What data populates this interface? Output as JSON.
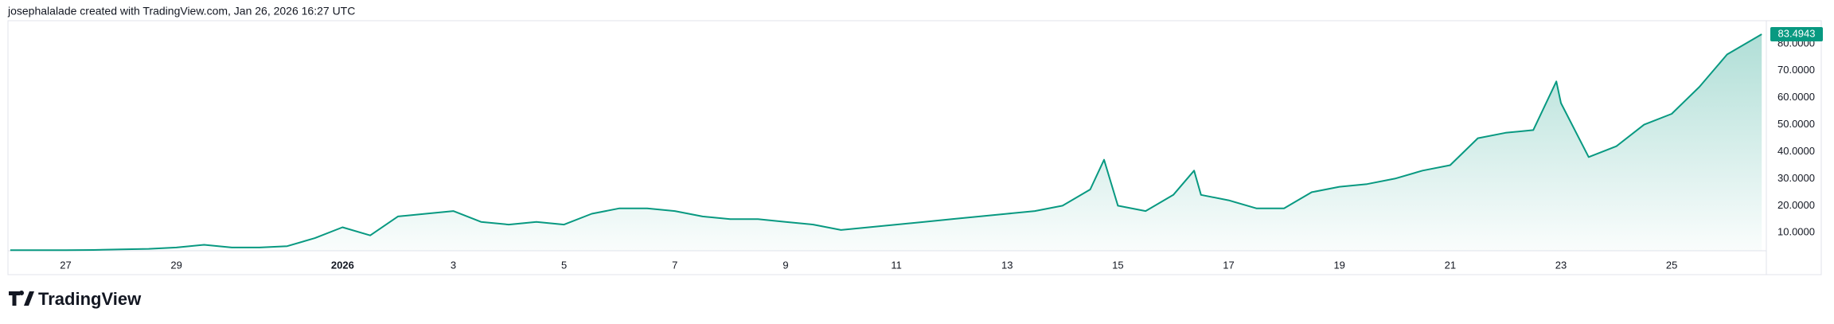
{
  "header": {
    "text": "josephalalade created with TradingView.com, Jan 26, 2026 16:27 UTC"
  },
  "footer": {
    "logo": "TradingView"
  },
  "chart_data": {
    "type": "area",
    "color": "#089981",
    "grid": false,
    "x": [
      "2025-12-26T00:00",
      "2025-12-26T12:00",
      "2025-12-27T00:00",
      "2025-12-27T12:00",
      "2025-12-28T00:00",
      "2025-12-28T12:00",
      "2025-12-29T00:00",
      "2025-12-29T12:00",
      "2025-12-30T00:00",
      "2025-12-30T12:00",
      "2025-12-31T00:00",
      "2025-12-31T12:00",
      "2026-01-01T00:00",
      "2026-01-01T12:00",
      "2026-01-02T00:00",
      "2026-01-02T12:00",
      "2026-01-03T00:00",
      "2026-01-03T12:00",
      "2026-01-04T00:00",
      "2026-01-04T12:00",
      "2026-01-05T00:00",
      "2026-01-05T12:00",
      "2026-01-06T00:00",
      "2026-01-06T12:00",
      "2026-01-07T00:00",
      "2026-01-07T12:00",
      "2026-01-08T00:00",
      "2026-01-08T12:00",
      "2026-01-09T00:00",
      "2026-01-09T12:00",
      "2026-01-10T00:00",
      "2026-01-10T12:00",
      "2026-01-11T00:00",
      "2026-01-11T12:00",
      "2026-01-12T00:00",
      "2026-01-12T12:00",
      "2026-01-13T00:00",
      "2026-01-13T12:00",
      "2026-01-14T00:00",
      "2026-01-14T12:00",
      "2026-01-14T18:00",
      "2026-01-15T00:00",
      "2026-01-15T12:00",
      "2026-01-16T00:00",
      "2026-01-16T09:00",
      "2026-01-16T12:00",
      "2026-01-17T00:00",
      "2026-01-17T12:00",
      "2026-01-18T00:00",
      "2026-01-18T12:00",
      "2026-01-19T00:00",
      "2026-01-19T12:00",
      "2026-01-20T00:00",
      "2026-01-20T12:00",
      "2026-01-21T00:00",
      "2026-01-21T12:00",
      "2026-01-22T00:00",
      "2026-01-22T12:00",
      "2026-01-22T22:00",
      "2026-01-23T00:00",
      "2026-01-23T12:00",
      "2026-01-24T00:00",
      "2026-01-24T12:00",
      "2026-01-25T00:00",
      "2026-01-25T12:00",
      "2026-01-26T00:00",
      "2026-01-26T15:00"
    ],
    "values": [
      3.5,
      3.5,
      3.5,
      3.6,
      3.8,
      4.0,
      4.5,
      5.5,
      4.5,
      4.5,
      5.0,
      8,
      12,
      9,
      16,
      17,
      18,
      14,
      13,
      14,
      13,
      17,
      19,
      19,
      18,
      16,
      15,
      15,
      14,
      13,
      11,
      12,
      13,
      14,
      15,
      16,
      17,
      18,
      20,
      26,
      37,
      20,
      18,
      24,
      33,
      24,
      22,
      19,
      19,
      25,
      27,
      28,
      30,
      33,
      35,
      45,
      47,
      48,
      66,
      58,
      38,
      42,
      50,
      54,
      64,
      76,
      83.4943
    ],
    "xlim": [
      "2025-12-25T23:00",
      "2026-01-26T17:00"
    ],
    "xticks": [
      {
        "value": "2025-12-27T00:00",
        "label": "27"
      },
      {
        "value": "2025-12-29T00:00",
        "label": "29"
      },
      {
        "value": "2026-01-01T00:00",
        "label": "2026"
      },
      {
        "value": "2026-01-03T00:00",
        "label": "3"
      },
      {
        "value": "2026-01-05T00:00",
        "label": "5"
      },
      {
        "value": "2026-01-07T00:00",
        "label": "7"
      },
      {
        "value": "2026-01-09T00:00",
        "label": "9"
      },
      {
        "value": "2026-01-11T00:00",
        "label": "11"
      },
      {
        "value": "2026-01-13T00:00",
        "label": "13"
      },
      {
        "value": "2026-01-15T00:00",
        "label": "15"
      },
      {
        "value": "2026-01-17T00:00",
        "label": "17"
      },
      {
        "value": "2026-01-19T00:00",
        "label": "19"
      },
      {
        "value": "2026-01-21T00:00",
        "label": "21"
      },
      {
        "value": "2026-01-23T00:00",
        "label": "23"
      },
      {
        "value": "2026-01-25T00:00",
        "label": "25"
      }
    ],
    "ylim": [
      3.3,
      88.5
    ],
    "yticks": [
      {
        "value": 10,
        "label": "10.0000"
      },
      {
        "value": 20,
        "label": "20.0000"
      },
      {
        "value": 30,
        "label": "30.0000"
      },
      {
        "value": 40,
        "label": "40.0000"
      },
      {
        "value": 50,
        "label": "50.0000"
      },
      {
        "value": 60,
        "label": "60.0000"
      },
      {
        "value": 70,
        "label": "70.0000"
      },
      {
        "value": 80,
        "label": "80.0000"
      }
    ]
  }
}
